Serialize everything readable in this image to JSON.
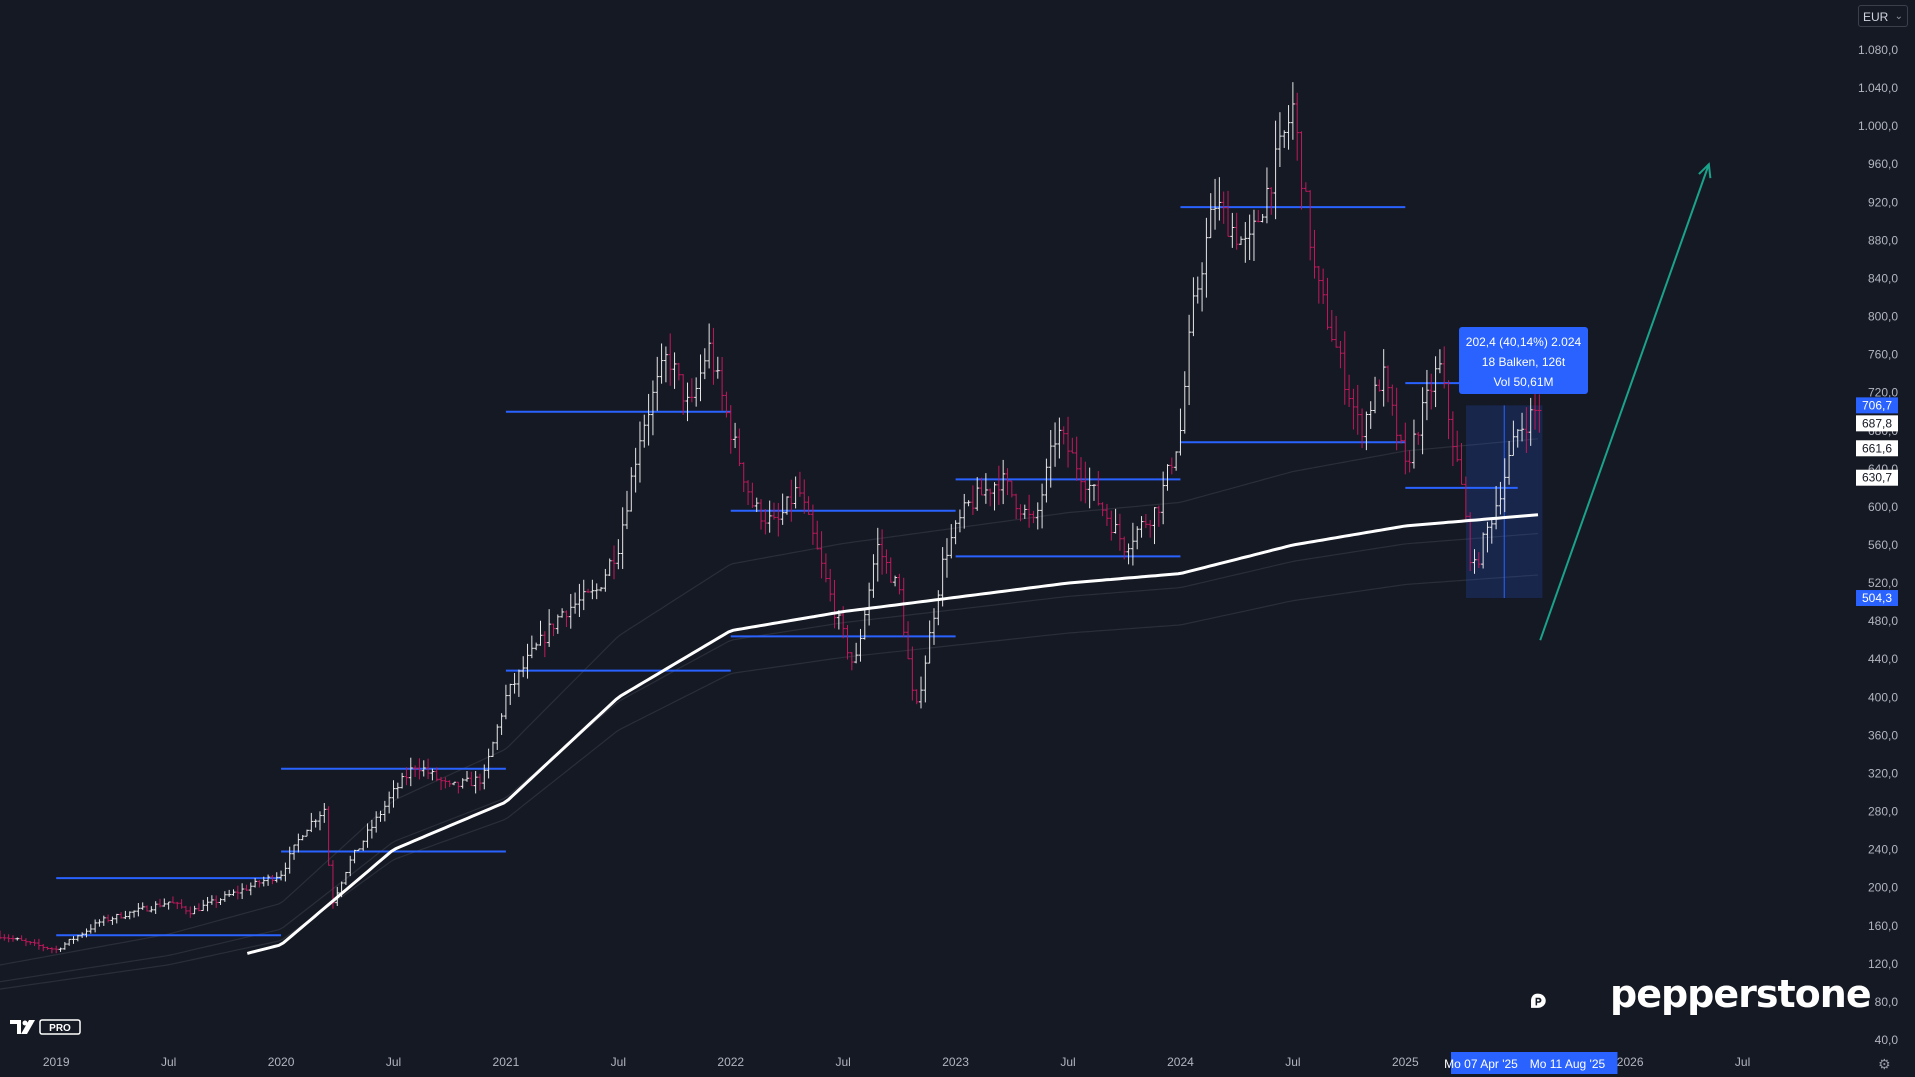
{
  "currency": "EUR",
  "chart_data": {
    "type": "candlestick",
    "y_axis": {
      "ticks": [
        "1.080,0",
        "1.040,0",
        "1.000,0",
        "960,0",
        "920,0",
        "880,0",
        "840,0",
        "800,0",
        "760,0",
        "720,0",
        "680,0",
        "640,0",
        "600,0",
        "560,0",
        "520,0",
        "480,0",
        "440,0",
        "400,0",
        "360,0",
        "320,0",
        "280,0",
        "240,0",
        "200,0",
        "160,0",
        "120,0",
        "80,0",
        "40,0"
      ],
      "values": [
        1080,
        1040,
        1000,
        960,
        920,
        880,
        840,
        800,
        760,
        720,
        680,
        640,
        600,
        560,
        520,
        480,
        440,
        400,
        360,
        320,
        280,
        240,
        200,
        160,
        120,
        80,
        40
      ],
      "range": [
        24,
        1108
      ]
    },
    "x_axis": {
      "ticks": [
        "2019",
        "Jul",
        "2020",
        "Jul",
        "2021",
        "Jul",
        "2022",
        "Jul",
        "2023",
        "Jul",
        "2024",
        "Jul",
        "2025",
        "Jul",
        "2026",
        "Jul"
      ],
      "values": [
        2019.0,
        2019.5,
        2020.0,
        2020.5,
        2021.0,
        2021.5,
        2022.0,
        2022.5,
        2023.0,
        2023.5,
        2024.0,
        2024.5,
        2025.0,
        2025.5,
        2026.0,
        2026.5
      ],
      "range": [
        2018.75,
        2027.0
      ]
    },
    "price_path": [
      [
        2018.75,
        150
      ],
      [
        2018.9,
        140
      ],
      [
        2019.0,
        135
      ],
      [
        2019.2,
        165
      ],
      [
        2019.5,
        185
      ],
      [
        2019.6,
        175
      ],
      [
        2019.8,
        195
      ],
      [
        2020.0,
        215
      ],
      [
        2020.1,
        260
      ],
      [
        2020.2,
        285
      ],
      [
        2020.22,
        180
      ],
      [
        2020.3,
        225
      ],
      [
        2020.5,
        300
      ],
      [
        2020.6,
        330
      ],
      [
        2020.75,
        305
      ],
      [
        2020.9,
        315
      ],
      [
        2021.0,
        400
      ],
      [
        2021.1,
        440
      ],
      [
        2021.25,
        490
      ],
      [
        2021.4,
        510
      ],
      [
        2021.5,
        560
      ],
      [
        2021.6,
        680
      ],
      [
        2021.72,
        760
      ],
      [
        2021.82,
        700
      ],
      [
        2021.9,
        770
      ],
      [
        2022.0,
        680
      ],
      [
        2022.1,
        600
      ],
      [
        2022.2,
        580
      ],
      [
        2022.3,
        620
      ],
      [
        2022.45,
        500
      ],
      [
        2022.55,
        430
      ],
      [
        2022.65,
        560
      ],
      [
        2022.75,
        510
      ],
      [
        2022.82,
        380
      ],
      [
        2022.95,
        550
      ],
      [
        2023.05,
        600
      ],
      [
        2023.2,
        630
      ],
      [
        2023.35,
        580
      ],
      [
        2023.45,
        680
      ],
      [
        2023.6,
        620
      ],
      [
        2023.75,
        560
      ],
      [
        2023.9,
        600
      ],
      [
        2024.0,
        680
      ],
      [
        2024.05,
        800
      ],
      [
        2024.15,
        920
      ],
      [
        2024.3,
        870
      ],
      [
        2024.45,
        980
      ],
      [
        2024.5,
        1020
      ],
      [
        2024.6,
        840
      ],
      [
        2024.7,
        760
      ],
      [
        2024.8,
        680
      ],
      [
        2024.9,
        740
      ],
      [
        2025.0,
        640
      ],
      [
        2025.05,
        680
      ],
      [
        2025.15,
        750
      ],
      [
        2025.25,
        620
      ],
      [
        2025.3,
        530
      ],
      [
        2025.4,
        600
      ],
      [
        2025.5,
        680
      ],
      [
        2025.6,
        706.7
      ]
    ],
    "moving_average": [
      [
        2018.75,
        110
      ],
      [
        2019.5,
        140
      ],
      [
        2020.0,
        170
      ],
      [
        2020.5,
        270
      ],
      [
        2021.0,
        320
      ],
      [
        2021.5,
        430
      ],
      [
        2022.0,
        500
      ],
      [
        2022.5,
        520
      ],
      [
        2023.0,
        535
      ],
      [
        2023.5,
        550
      ],
      [
        2024.0,
        560
      ],
      [
        2024.5,
        590
      ],
      [
        2025.0,
        610
      ],
      [
        2025.5,
        620
      ],
      [
        2025.6,
        622
      ]
    ],
    "horizontal_levels": [
      {
        "price": 210,
        "from": 2019.0,
        "to": 2020.0
      },
      {
        "price": 150,
        "from": 2019.0,
        "to": 2020.0
      },
      {
        "price": 325,
        "from": 2020.0,
        "to": 2021.0
      },
      {
        "price": 238,
        "from": 2020.0,
        "to": 2021.0
      },
      {
        "price": 700,
        "from": 2021.0,
        "to": 2022.0
      },
      {
        "price": 428,
        "from": 2021.0,
        "to": 2022.0
      },
      {
        "price": 596,
        "from": 2022.0,
        "to": 2023.0
      },
      {
        "price": 464,
        "from": 2022.0,
        "to": 2023.0
      },
      {
        "price": 629,
        "from": 2023.0,
        "to": 2024.0
      },
      {
        "price": 548,
        "from": 2023.0,
        "to": 2024.0
      },
      {
        "price": 915,
        "from": 2024.0,
        "to": 2025.0
      },
      {
        "price": 668,
        "from": 2024.0,
        "to": 2025.0
      },
      {
        "price": 730,
        "from": 2025.0,
        "to": 2025.5
      },
      {
        "price": 620,
        "from": 2025.0,
        "to": 2025.5
      }
    ],
    "price_labels": [
      {
        "label": "706,7",
        "value": 706.7,
        "style": "blue"
      },
      {
        "label": "687,8",
        "value": 687.8,
        "style": "white"
      },
      {
        "label": "661,6",
        "value": 661.6,
        "style": "white"
      },
      {
        "label": "630,7",
        "value": 630.7,
        "style": "white"
      },
      {
        "label": "504,3",
        "value": 504.3,
        "style": "blue"
      }
    ],
    "measure_range": {
      "from": 2025.27,
      "to": 2025.61,
      "low": 504.3,
      "high": 706.7
    },
    "trend_arrow": {
      "from": [
        2025.6,
        460
      ],
      "to": [
        2026.35,
        960
      ]
    },
    "colors": {
      "up": "#e6e6e6",
      "down": "#c2185b",
      "level": "#2962ff",
      "ma": "#ffffff",
      "arrow": "#1aa38a",
      "axis_text": "#b2b5be"
    }
  },
  "measure_tooltip": {
    "line1": "202,4 (40,14%) 2.024",
    "line2": "18 Balken, 126t",
    "line3": "Vol 50,61M"
  },
  "date_labels": {
    "start": "Mo 07 Apr '25",
    "end": "Mo 11 Aug '25"
  },
  "brand_name": "pepperstone",
  "tv_badge": "PRO"
}
